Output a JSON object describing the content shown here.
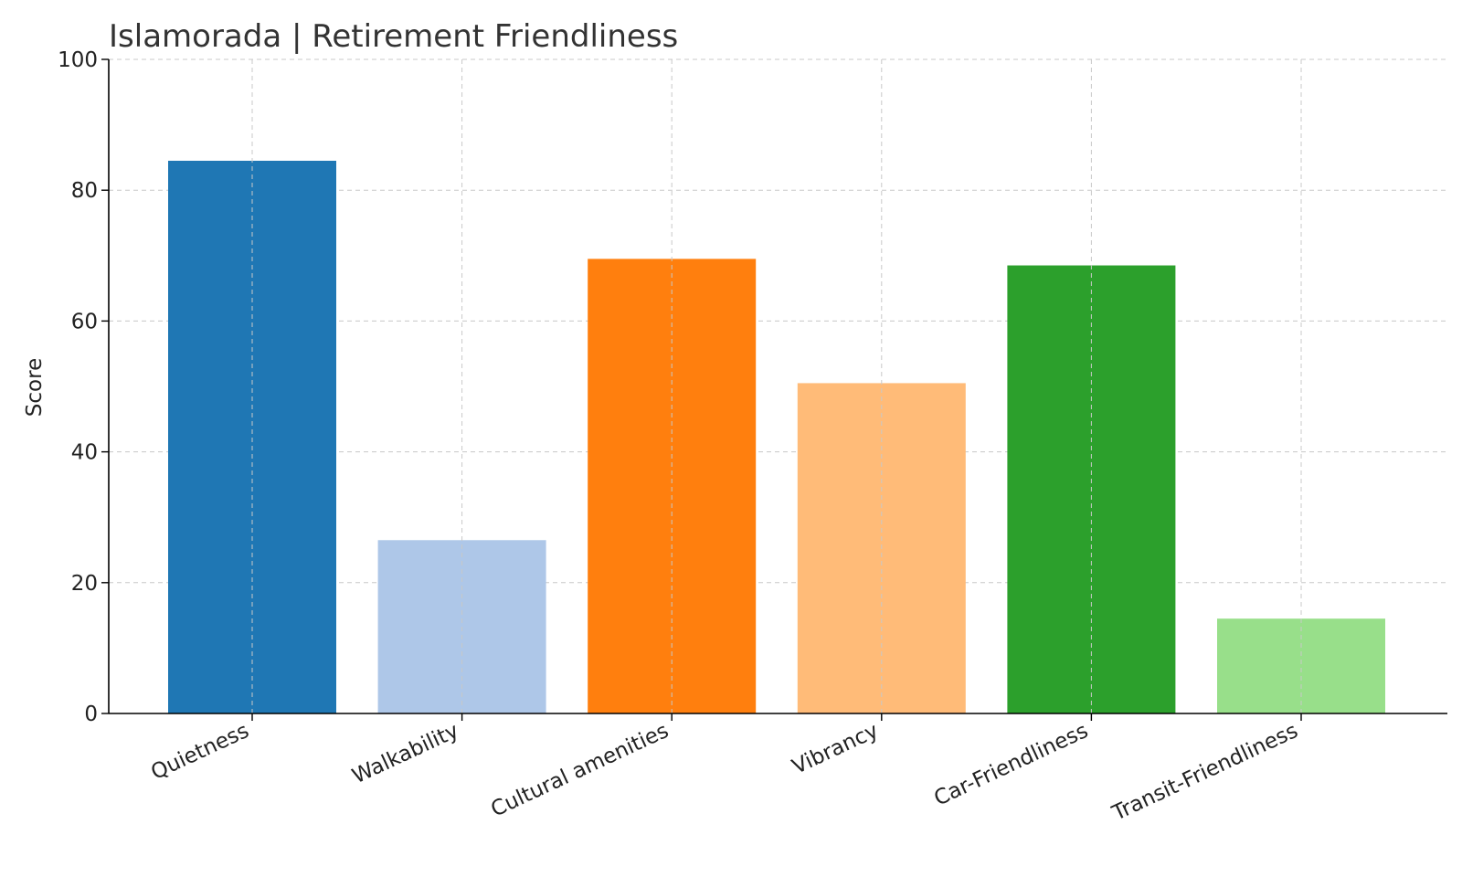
{
  "chart_data": {
    "type": "bar",
    "title": "Islamorada | Retirement Friendliness",
    "xlabel": "",
    "ylabel": "Score",
    "ylim": [
      0,
      100
    ],
    "yticks": [
      0,
      20,
      40,
      60,
      80,
      100
    ],
    "grid": true,
    "categories": [
      "Quietness",
      "Walkability",
      "Cultural amenities",
      "Vibrancy",
      "Car-Friendliness",
      "Transit-Friendliness"
    ],
    "values": [
      84.5,
      26.5,
      69.5,
      50.5,
      68.5,
      14.5
    ],
    "colors": [
      "#1f77b4",
      "#aec7e8",
      "#ff7f0e",
      "#ffbb78",
      "#2ca02c",
      "#98df8a"
    ]
  }
}
